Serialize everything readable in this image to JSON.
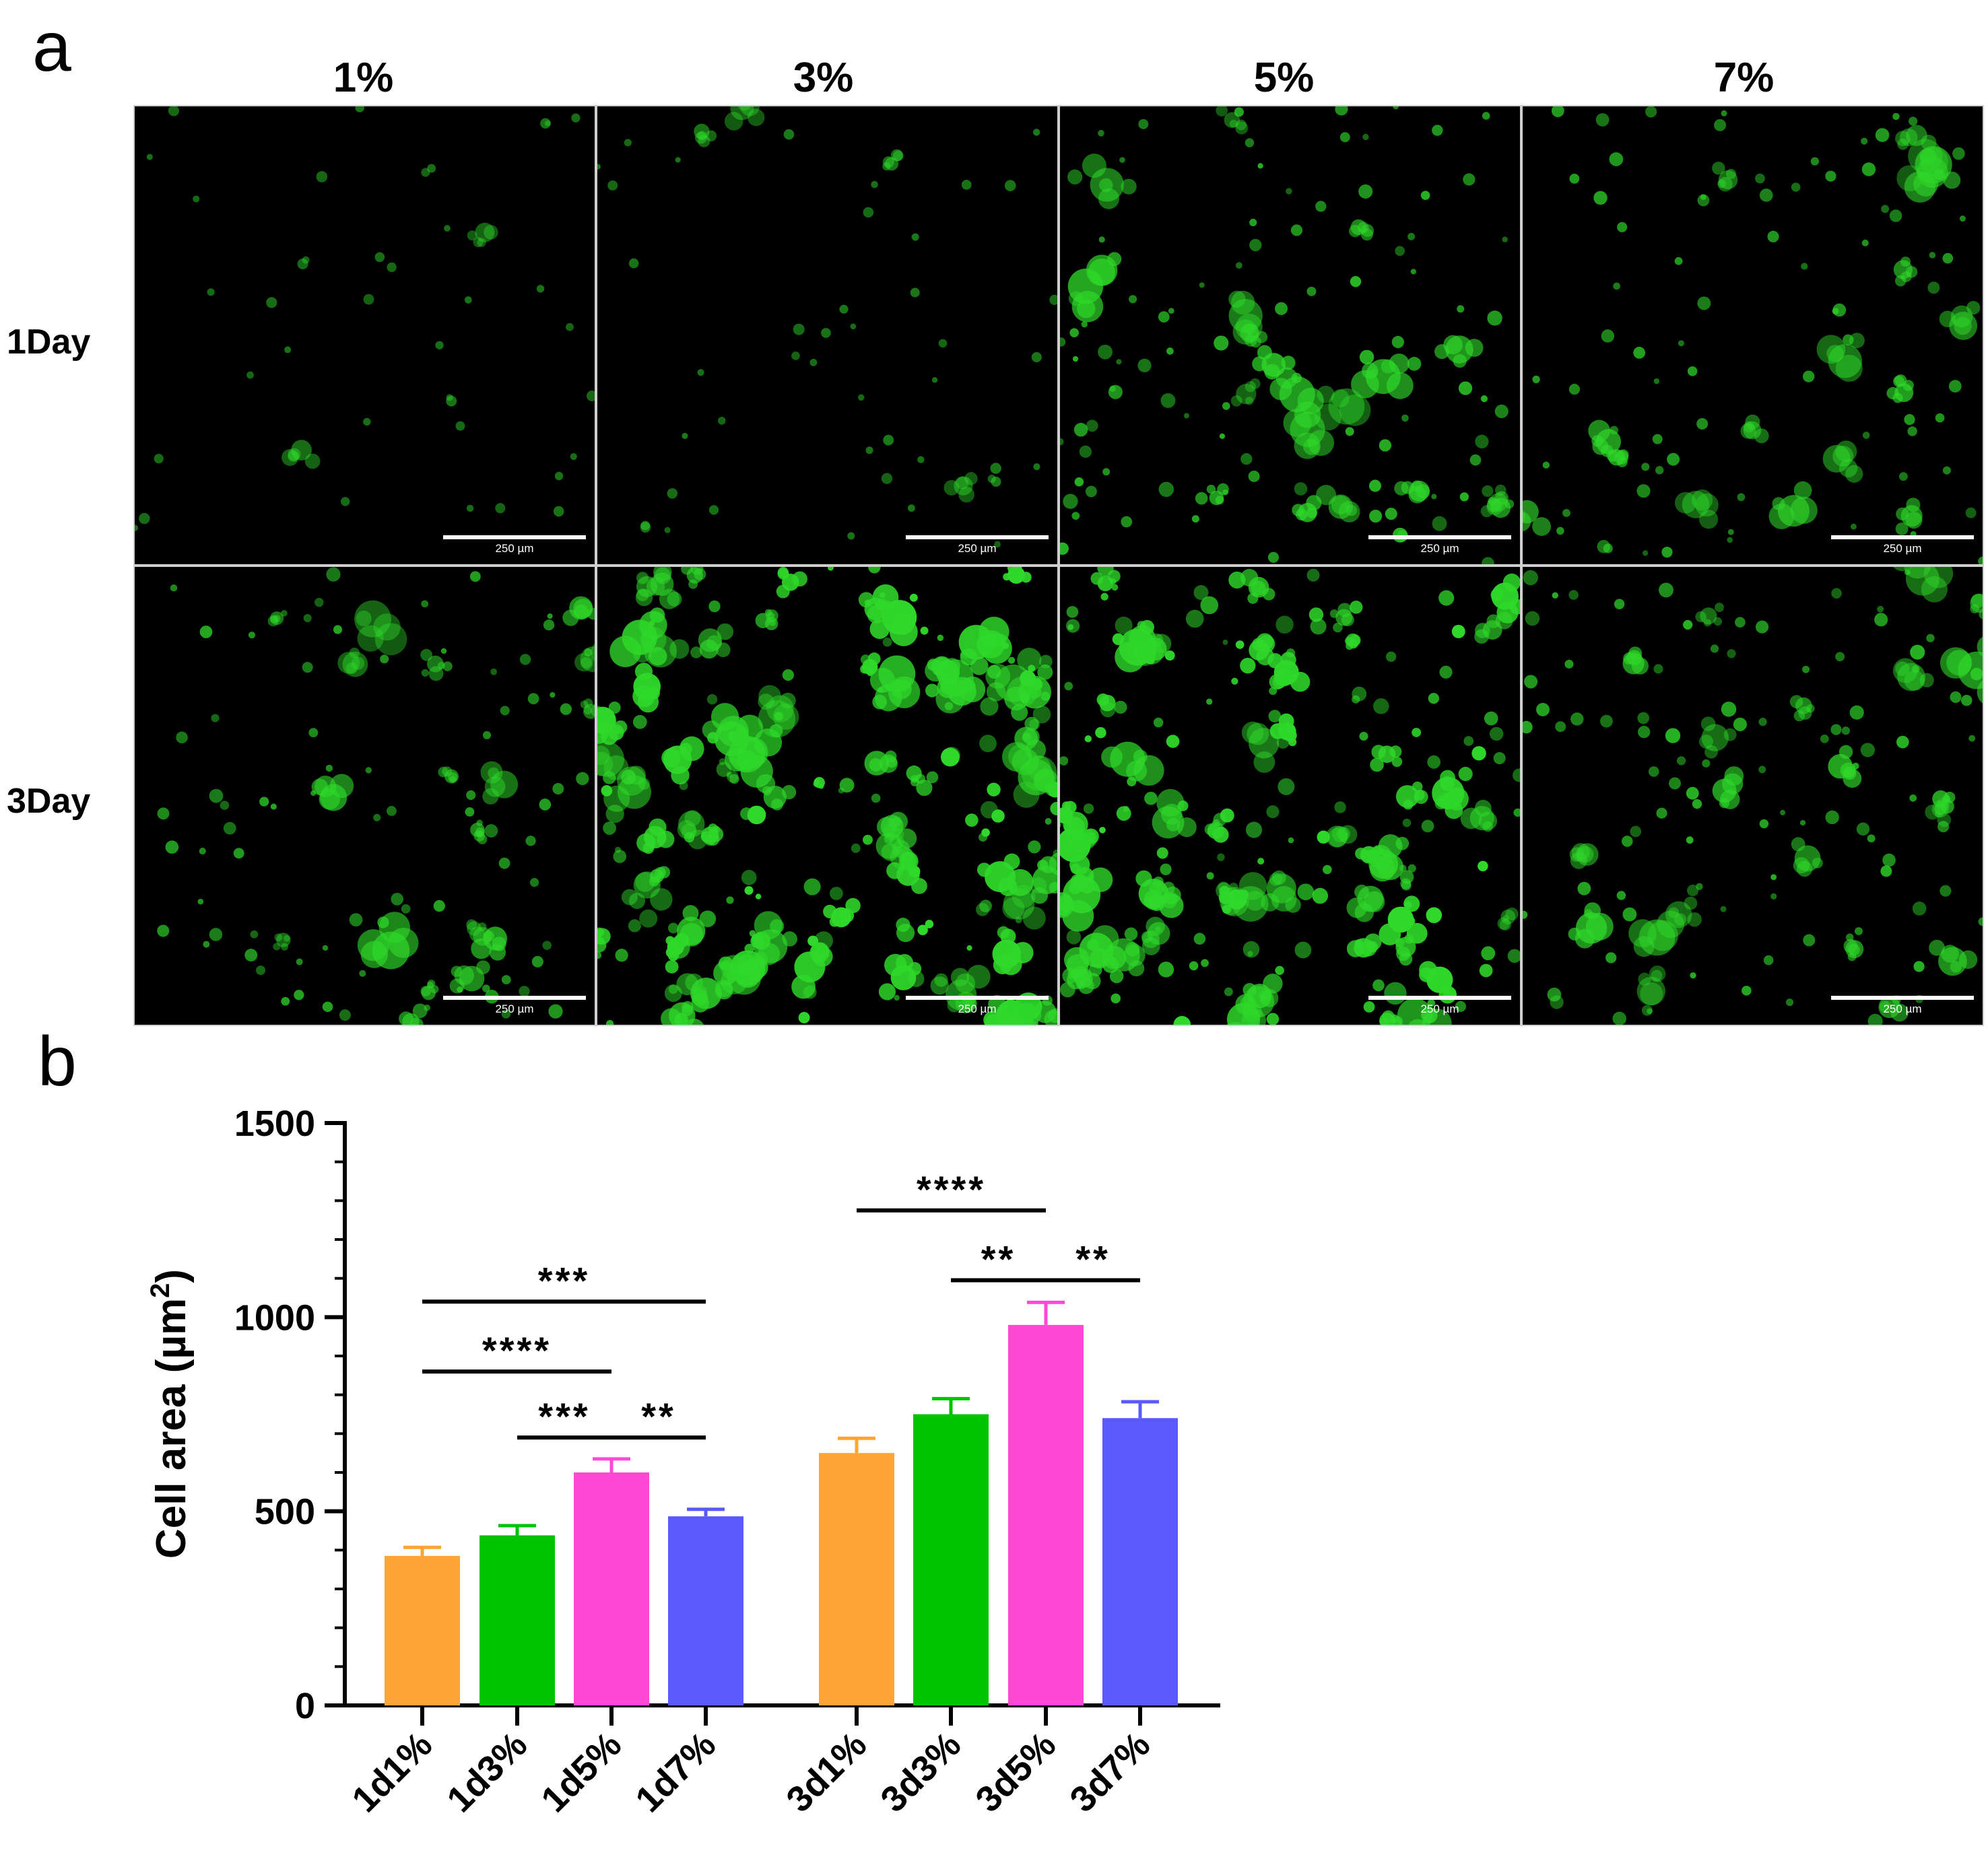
{
  "panel_a": {
    "letter": "a",
    "columns": [
      "1%",
      "3%",
      "5%",
      "7%"
    ],
    "rows": [
      "1Day",
      "3Day"
    ],
    "scale_bar_label": "250 µm",
    "cell_color": "#2fd82a",
    "image_density": [
      [
        0.12,
        0.16,
        0.55,
        0.42
      ],
      [
        0.45,
        0.95,
        0.9,
        0.55
      ]
    ]
  },
  "panel_b": {
    "letter": "b"
  },
  "chart_data": {
    "type": "bar",
    "categories": [
      "1d1%",
      "1d3%",
      "1d5%",
      "1d7%",
      "3d1%",
      "3d3%",
      "3d5%",
      "3d7%"
    ],
    "values": [
      385,
      438,
      600,
      487,
      650,
      750,
      980,
      740
    ],
    "errors": [
      22,
      25,
      35,
      18,
      38,
      40,
      58,
      42
    ],
    "colors": [
      "#ffa436",
      "#00c400",
      "#ff49d6",
      "#5a5afc",
      "#ffa436",
      "#00c400",
      "#ff49d6",
      "#5a5afc"
    ],
    "ylabel": "Cell area (µm",
    "ylabel_sup": "2",
    "ylabel_close": ")",
    "ylim": [
      0,
      1500
    ],
    "yticks": [
      0,
      500,
      1000,
      1500
    ],
    "significance": [
      {
        "from": 0,
        "to": 3,
        "y": 1040,
        "label": "***"
      },
      {
        "from": 0,
        "to": 2,
        "y": 860,
        "label": "****"
      },
      {
        "from": 1,
        "to": 2,
        "y": 690,
        "label": "***"
      },
      {
        "from": 2,
        "to": 3,
        "y": 690,
        "label": "**"
      },
      {
        "from": 4,
        "to": 6,
        "y": 1275,
        "label": "****"
      },
      {
        "from": 5,
        "to": 6,
        "y": 1095,
        "label": "**"
      },
      {
        "from": 6,
        "to": 7,
        "y": 1095,
        "label": "**"
      }
    ]
  }
}
